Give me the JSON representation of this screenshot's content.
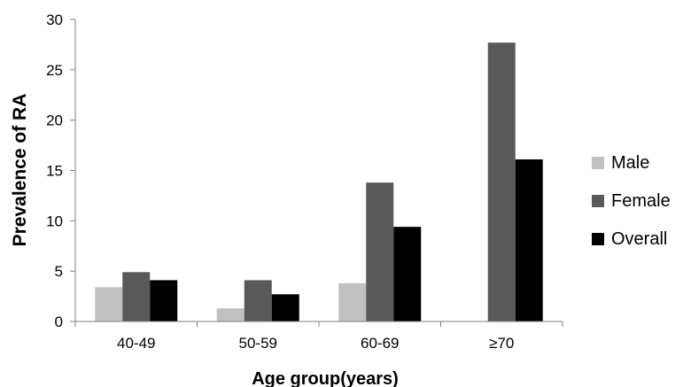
{
  "chart_data": {
    "type": "bar",
    "title": "",
    "xlabel": "Age group(years)",
    "ylabel": "Prevalence of RA",
    "ylim": [
      0,
      30
    ],
    "yticks": [
      0,
      5,
      10,
      15,
      20,
      25,
      30
    ],
    "grid": false,
    "legend_position": "right",
    "categories": [
      "40-49",
      "50-59",
      "60-69",
      "≥70"
    ],
    "series": [
      {
        "name": "Male",
        "color": "#c0c0c0",
        "values": [
          3.4,
          1.3,
          3.8,
          0
        ]
      },
      {
        "name": "Female",
        "color": "#595959",
        "values": [
          4.9,
          4.1,
          13.8,
          27.7
        ]
      },
      {
        "name": "Overall",
        "color": "#000000",
        "values": [
          4.1,
          2.7,
          9.4,
          16.1
        ]
      }
    ]
  }
}
